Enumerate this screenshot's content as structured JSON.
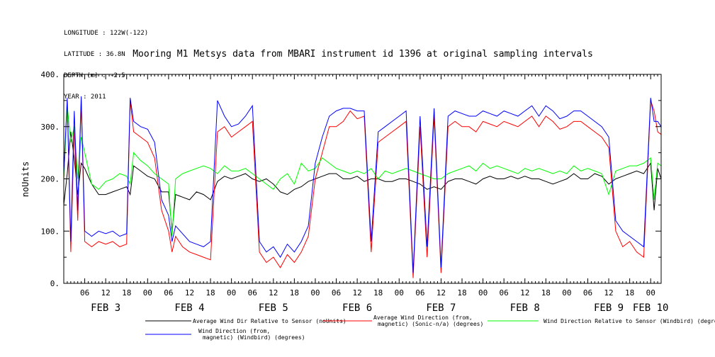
{
  "header": {
    "meta_lines": [
      "LONGITUDE : 122W(-122)",
      "LATITUDE : 36.8N",
      "DEPTH (m) : -2.5",
      "YEAR : 2011"
    ]
  },
  "chart_data": {
    "type": "line",
    "title": "Mooring M1 Metsys data from MBARI instrument id 1396 at original sampling intervals",
    "ylabel": "noUnits",
    "xlabel": "",
    "ylim": [
      0,
      400
    ],
    "yticks": [
      0,
      100,
      200,
      300,
      400
    ],
    "x_unit": "hours since FEB 3 00:00, 2011",
    "xlim": [
      0,
      171
    ],
    "hour_tick_labels": [
      "06",
      "12",
      "18",
      "00",
      "06",
      "12",
      "18",
      "00",
      "06",
      "12",
      "18",
      "00",
      "06",
      "12",
      "18",
      "00",
      "06",
      "12",
      "18",
      "00",
      "06",
      "12",
      "18",
      "00",
      "06",
      "12",
      "18",
      "00",
      "06",
      "12",
      "18",
      "00"
    ],
    "hour_tick_values": [
      6,
      12,
      18,
      24,
      30,
      36,
      42,
      48,
      54,
      60,
      66,
      72,
      78,
      84,
      90,
      96,
      102,
      108,
      114,
      120,
      126,
      132,
      138,
      144,
      150,
      156,
      162,
      168
    ],
    "day_labels": [
      {
        "text": "FEB  3",
        "x": 12
      },
      {
        "text": "FEB  4",
        "x": 36
      },
      {
        "text": "FEB  5",
        "x": 60
      },
      {
        "text": "FEB  6",
        "x": 84
      },
      {
        "text": "FEB  7",
        "x": 108
      },
      {
        "text": "FEB  8",
        "x": 132
      },
      {
        "text": "FEB  9",
        "x": 156
      },
      {
        "text": "FEB 10",
        "x": 168
      }
    ],
    "grid": false,
    "legend_position": "bottom",
    "series": [
      {
        "name": "Average Wind Dir Relative to Sensor (noUnits)",
        "color": "#000000",
        "x": [
          0,
          1,
          2,
          3,
          4,
          5,
          6,
          8,
          10,
          12,
          14,
          16,
          18,
          19,
          20,
          22,
          24,
          26,
          28,
          30,
          31,
          32,
          34,
          36,
          38,
          40,
          42,
          44,
          46,
          48,
          50,
          52,
          54,
          56,
          58,
          60,
          62,
          64,
          66,
          68,
          70,
          72,
          74,
          76,
          78,
          80,
          82,
          84,
          86,
          88,
          90,
          92,
          94,
          96,
          98,
          100,
          102,
          104,
          106,
          108,
          110,
          112,
          114,
          116,
          118,
          120,
          122,
          124,
          126,
          128,
          130,
          132,
          134,
          136,
          138,
          140,
          142,
          144,
          146,
          148,
          150,
          152,
          154,
          156,
          158,
          160,
          162,
          164,
          166,
          168,
          169,
          170,
          171
        ],
        "y": [
          150,
          210,
          290,
          240,
          170,
          230,
          220,
          190,
          170,
          170,
          175,
          180,
          185,
          170,
          225,
          215,
          205,
          200,
          175,
          175,
          100,
          170,
          165,
          160,
          175,
          170,
          160,
          195,
          205,
          200,
          205,
          210,
          200,
          195,
          200,
          190,
          175,
          170,
          180,
          185,
          195,
          200,
          205,
          210,
          210,
          200,
          200,
          205,
          195,
          200,
          200,
          195,
          195,
          200,
          200,
          195,
          190,
          180,
          185,
          180,
          195,
          200,
          200,
          195,
          190,
          200,
          205,
          200,
          200,
          205,
          200,
          205,
          200,
          200,
          195,
          190,
          195,
          200,
          210,
          200,
          200,
          210,
          205,
          190,
          200,
          205,
          210,
          215,
          210,
          230,
          140,
          220,
          200
        ]
      },
      {
        "name": "Average Wind Direction (from, magnetic) (Sonic-n/a) (degrees)",
        "color": "#ff0000",
        "x": [
          0,
          1,
          2,
          3,
          4,
          5,
          6,
          8,
          10,
          12,
          14,
          16,
          18,
          19,
          20,
          22,
          24,
          26,
          28,
          30,
          31,
          32,
          34,
          36,
          38,
          40,
          42,
          44,
          46,
          48,
          50,
          52,
          54,
          56,
          58,
          60,
          62,
          64,
          66,
          68,
          70,
          72,
          74,
          76,
          78,
          80,
          82,
          84,
          86,
          88,
          90,
          92,
          94,
          96,
          98,
          100,
          102,
          104,
          106,
          108,
          110,
          112,
          114,
          116,
          118,
          120,
          122,
          124,
          126,
          128,
          130,
          132,
          134,
          136,
          138,
          140,
          142,
          144,
          146,
          148,
          150,
          152,
          154,
          156,
          158,
          160,
          162,
          164,
          166,
          168,
          169,
          170,
          171
        ],
        "y": [
          200,
          350,
          60,
          300,
          120,
          350,
          80,
          70,
          80,
          75,
          80,
          70,
          75,
          350,
          290,
          280,
          270,
          240,
          140,
          100,
          60,
          90,
          70,
          60,
          55,
          50,
          45,
          290,
          300,
          280,
          290,
          300,
          310,
          60,
          40,
          50,
          30,
          55,
          40,
          60,
          90,
          200,
          250,
          300,
          300,
          310,
          330,
          315,
          320,
          60,
          270,
          280,
          290,
          300,
          310,
          10,
          300,
          50,
          320,
          20,
          300,
          310,
          300,
          300,
          290,
          310,
          305,
          300,
          310,
          305,
          300,
          310,
          320,
          300,
          320,
          310,
          295,
          300,
          310,
          310,
          300,
          290,
          280,
          260,
          100,
          70,
          80,
          60,
          50,
          350,
          330,
          290,
          285
        ]
      },
      {
        "name": "Wind Direction Relative to Sensor (Windbird) (degrees)",
        "color": "#00ff00",
        "x": [
          0,
          1,
          2,
          3,
          4,
          5,
          6,
          8,
          10,
          12,
          14,
          16,
          18,
          19,
          20,
          22,
          24,
          26,
          28,
          30,
          31,
          32,
          34,
          36,
          38,
          40,
          42,
          44,
          46,
          48,
          50,
          52,
          54,
          56,
          58,
          60,
          62,
          64,
          66,
          68,
          70,
          72,
          74,
          76,
          78,
          80,
          82,
          84,
          86,
          88,
          90,
          92,
          94,
          96,
          98,
          100,
          102,
          104,
          106,
          108,
          110,
          112,
          114,
          116,
          118,
          120,
          122,
          124,
          126,
          128,
          130,
          132,
          134,
          136,
          138,
          140,
          142,
          144,
          146,
          148,
          150,
          152,
          154,
          156,
          158,
          160,
          162,
          164,
          166,
          168,
          169,
          170,
          171
        ],
        "y": [
          200,
          340,
          270,
          300,
          200,
          280,
          250,
          190,
          180,
          195,
          200,
          210,
          205,
          190,
          250,
          235,
          225,
          210,
          200,
          190,
          90,
          200,
          210,
          215,
          220,
          225,
          220,
          210,
          225,
          215,
          215,
          220,
          210,
          200,
          190,
          180,
          200,
          210,
          190,
          230,
          215,
          220,
          240,
          230,
          220,
          215,
          210,
          215,
          210,
          220,
          200,
          215,
          210,
          215,
          220,
          215,
          210,
          205,
          200,
          200,
          210,
          215,
          220,
          225,
          215,
          230,
          220,
          225,
          220,
          215,
          210,
          220,
          215,
          220,
          215,
          210,
          215,
          210,
          225,
          215,
          220,
          215,
          210,
          170,
          215,
          220,
          225,
          225,
          230,
          240,
          160,
          230,
          225
        ]
      },
      {
        "name": "Wind Direction (from, magnetic) (Windbird) (degrees)",
        "color": "#0000ff",
        "x": [
          0,
          1,
          2,
          3,
          4,
          5,
          6,
          8,
          10,
          12,
          14,
          16,
          18,
          19,
          20,
          22,
          24,
          26,
          28,
          30,
          31,
          32,
          34,
          36,
          38,
          40,
          42,
          44,
          46,
          48,
          50,
          52,
          54,
          56,
          58,
          60,
          62,
          64,
          66,
          68,
          70,
          72,
          74,
          76,
          78,
          80,
          82,
          84,
          86,
          88,
          90,
          92,
          94,
          96,
          98,
          100,
          102,
          104,
          106,
          108,
          110,
          112,
          114,
          116,
          118,
          120,
          122,
          124,
          126,
          128,
          130,
          132,
          134,
          136,
          138,
          140,
          142,
          144,
          146,
          148,
          150,
          152,
          154,
          156,
          158,
          160,
          162,
          164,
          166,
          168,
          169,
          170,
          171
        ],
        "y": [
          210,
          355,
          80,
          330,
          140,
          358,
          100,
          90,
          100,
          95,
          100,
          90,
          95,
          355,
          310,
          300,
          295,
          270,
          160,
          130,
          80,
          110,
          95,
          80,
          75,
          70,
          80,
          350,
          320,
          300,
          305,
          320,
          340,
          80,
          60,
          70,
          50,
          75,
          60,
          80,
          110,
          230,
          280,
          320,
          330,
          335,
          335,
          330,
          330,
          80,
          290,
          300,
          310,
          320,
          330,
          20,
          320,
          70,
          335,
          30,
          320,
          330,
          325,
          320,
          320,
          330,
          325,
          320,
          330,
          325,
          320,
          330,
          340,
          320,
          340,
          330,
          315,
          320,
          330,
          330,
          320,
          310,
          300,
          280,
          120,
          100,
          90,
          80,
          70,
          355,
          310,
          310,
          300
        ]
      }
    ],
    "legend_entries": [
      {
        "lines": [
          "Average Wind Dir Relative to Sensor (noUnits)"
        ],
        "color": "#000000"
      },
      {
        "lines": [
          "Average Wind Direction (from,",
          "magnetic) (Sonic-n/a) (degrees)"
        ],
        "color": "#ff0000"
      },
      {
        "lines": [
          "Wind Direction Relative to Sensor (Windbird) (degrees)"
        ],
        "color": "#00ff00"
      },
      {
        "lines": [
          "Wind Direction (from,",
          "magnetic) (Windbird) (degrees)"
        ],
        "color": "#0000ff"
      }
    ]
  }
}
